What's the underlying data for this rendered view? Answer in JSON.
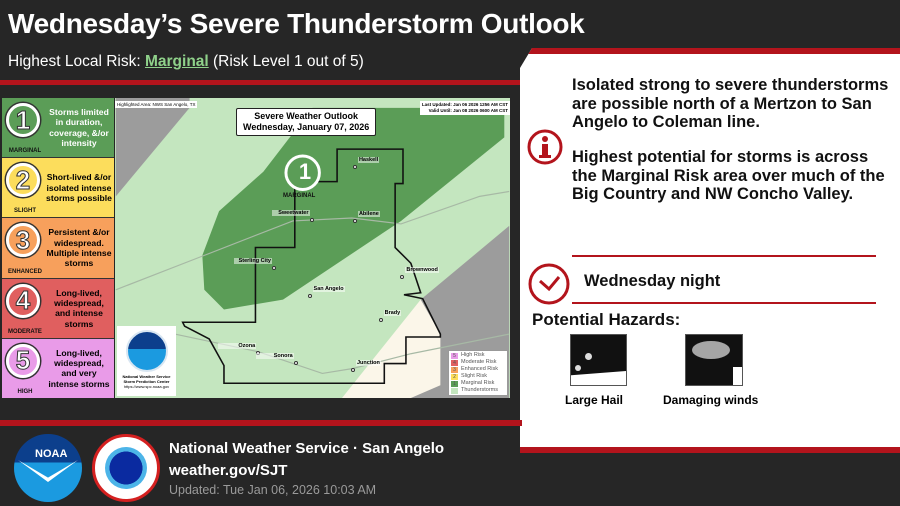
{
  "header": {
    "title": "Wednesday’s Severe Thunderstorm Outlook",
    "subtitle_prefix": "Highest Local Risk: ",
    "subtitle_risk": "Marginal",
    "subtitle_suffix": " (Risk Level 1 out of 5)"
  },
  "legend": [
    {
      "num": "1",
      "name": "MARGINAL",
      "desc": "Storms limited in duration, coverage, &/or intensity",
      "color": "#5b9d57"
    },
    {
      "num": "2",
      "name": "SLIGHT",
      "desc": "Short-lived &/or isolated intense storms possible",
      "color": "#fcdd5c"
    },
    {
      "num": "3",
      "name": "ENHANCED",
      "desc": "Persistent &/or widespread. Multiple intense storms",
      "color": "#f7a05c"
    },
    {
      "num": "4",
      "name": "MODERATE",
      "desc": "Long-lived, widespread, and intense storms",
      "color": "#e05f5f"
    },
    {
      "num": "5",
      "name": "HIGH",
      "desc": "Long-lived, widespread, and very intense storms",
      "color": "#e99be8"
    }
  ],
  "map": {
    "highlighted_area": "Highlighted Area: NWS San Angelo, TX",
    "box_title": "Severe Weather Outlook",
    "box_date": "Wednesday, January 07, 2026",
    "last_updated": "Last Updated: Jan 06 2026 1256 AM CST",
    "valid_until": "Valid Until: Jan 08 2026 0600 AM CST",
    "risk_marker_num": "1",
    "risk_marker_label": "MARGINAL",
    "cities": [
      "Haskell",
      "Sweetwater",
      "Abilene",
      "Sterling City",
      "San Angelo",
      "Brownwood",
      "Brady",
      "Ozona",
      "Sonora",
      "Junction"
    ],
    "noaa_logo_text": "NOAA",
    "spc_line1": "National Weather Service",
    "spc_line2": "Storm Prediction Center",
    "spc_url": "https://www.spc.noaa.gov",
    "map_legend": [
      {
        "n": "5",
        "label": "High Risk",
        "color": "#e99be8"
      },
      {
        "n": "4",
        "label": "Moderate Risk",
        "color": "#e05f5f"
      },
      {
        "n": "3",
        "label": "Enhanced Risk",
        "color": "#f7a05c"
      },
      {
        "n": "2",
        "label": "Slight Risk",
        "color": "#fcdd5c"
      },
      {
        "n": "1",
        "label": "Marginal Risk",
        "color": "#5b9d57"
      },
      {
        "n": "",
        "label": "Thunderstorms",
        "color": "#c4e6bf"
      }
    ]
  },
  "panel": {
    "para1": "Isolated strong to severe thunderstorms are possible north of a Mertzon to San Angelo to Coleman line.",
    "para2": "Highest potential for storms is across the Marginal Risk area over much of the Big Country and NW Concho Valley.",
    "timing": "Wednesday night",
    "hazards_title": "Potential Hazards:",
    "hazards": [
      "Large Hail",
      "Damaging winds"
    ],
    "accent": "#b3141c"
  },
  "footer": {
    "noaa": "NOAA",
    "nws_ring": "NATIONAL WEATHER SERVICE",
    "office": "National Weather Service · San Angelo",
    "url": "weather.gov/SJT",
    "updated": "Updated: Tue Jan 06, 2026 10:03 AM"
  }
}
